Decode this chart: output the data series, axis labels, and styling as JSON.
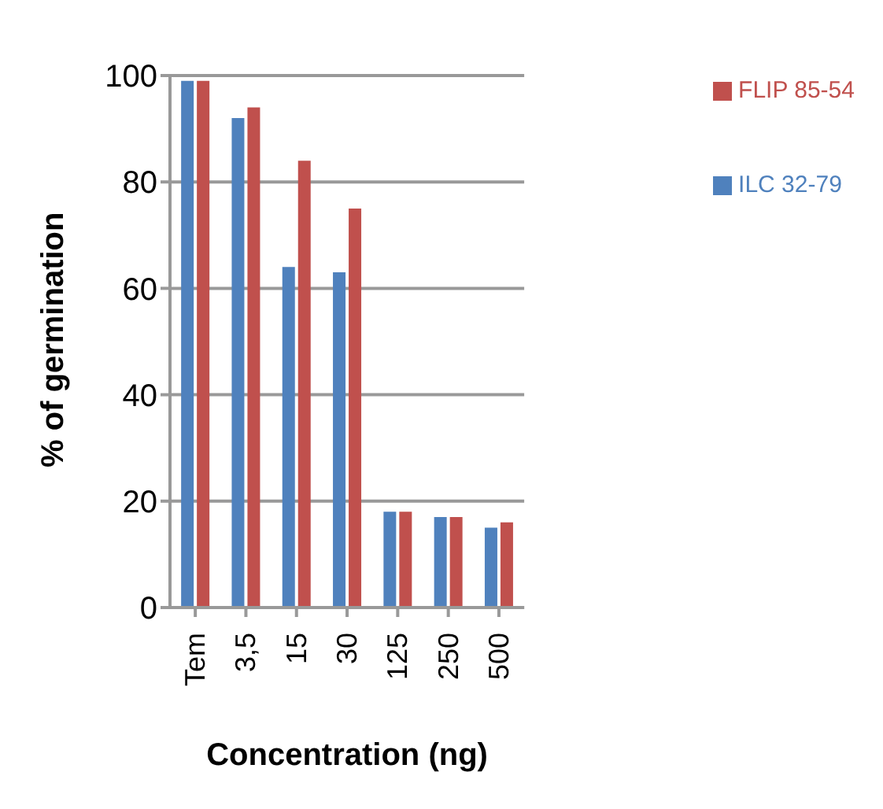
{
  "chart_data": {
    "type": "bar",
    "xlabel": "Concentration (ng)",
    "ylabel": "% of germination",
    "categories": [
      "Tem",
      "3,5",
      "15",
      "30",
      "125",
      "250",
      "500"
    ],
    "series": [
      {
        "name": "ILC 32-79",
        "color": "#4f81bd",
        "values": [
          99,
          92,
          64,
          63,
          18,
          17,
          15
        ]
      },
      {
        "name": "FLIP 85-54",
        "color": "#c0504d",
        "values": [
          99,
          94,
          84,
          75,
          18,
          17,
          16
        ]
      }
    ],
    "ylim": [
      0,
      100
    ],
    "yticks": [
      0,
      20,
      40,
      60,
      80,
      100
    ],
    "grid": "y",
    "legend": "top right"
  }
}
